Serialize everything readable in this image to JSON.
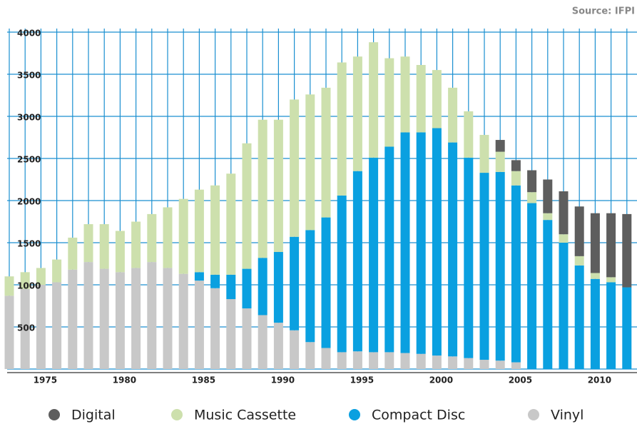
{
  "chart_data": {
    "type": "stacked_bar",
    "source": "Source: IFPI",
    "categories": [
      null,
      null,
      "1975",
      null,
      null,
      null,
      null,
      "1980",
      null,
      null,
      null,
      null,
      "1985",
      null,
      null,
      null,
      null,
      "1990",
      null,
      null,
      null,
      null,
      "1995",
      null,
      null,
      null,
      null,
      "2000",
      null,
      null,
      null,
      null,
      "2005",
      null,
      null,
      null,
      null,
      "2010",
      null,
      null
    ],
    "series": [
      {
        "name": "Digital",
        "color": "#5e5e5e",
        "values": [
          0,
          0,
          0,
          0,
          0,
          0,
          0,
          0,
          0,
          0,
          0,
          0,
          0,
          0,
          0,
          0,
          0,
          0,
          0,
          0,
          0,
          0,
          0,
          0,
          0,
          0,
          0,
          0,
          0,
          0,
          0,
          140,
          130,
          260,
          400,
          510,
          590,
          710,
          760,
          870
        ]
      },
      {
        "name": "Music Cassette",
        "color": "#cde0ad",
        "values": [
          230,
          200,
          200,
          270,
          380,
          450,
          530,
          490,
          550,
          570,
          720,
          890,
          980,
          1060,
          1200,
          1490,
          1640,
          1570,
          1630,
          1610,
          1540,
          1580,
          1360,
          1370,
          1050,
          900,
          800,
          690,
          650,
          550,
          450,
          240,
          170,
          130,
          80,
          100,
          110,
          70,
          60,
          0
        ]
      },
      {
        "name": "Compact Disc",
        "color": "#0aa0e0",
        "values": [
          0,
          0,
          0,
          0,
          0,
          0,
          0,
          0,
          0,
          0,
          0,
          0,
          100,
          160,
          290,
          470,
          680,
          840,
          1110,
          1330,
          1550,
          1860,
          2140,
          2310,
          2440,
          2620,
          2630,
          2700,
          2540,
          2380,
          2220,
          2240,
          2100,
          1970,
          1770,
          1500,
          1230,
          1070,
          1030,
          970
        ]
      },
      {
        "name": "Vinyl",
        "color": "#c8c8c8",
        "values": [
          870,
          950,
          1000,
          1030,
          1180,
          1270,
          1190,
          1150,
          1200,
          1270,
          1200,
          1130,
          1050,
          960,
          830,
          720,
          640,
          550,
          460,
          320,
          250,
          200,
          210,
          200,
          200,
          190,
          180,
          160,
          150,
          130,
          110,
          100,
          80,
          0,
          0,
          0,
          0,
          0,
          0,
          0
        ]
      }
    ],
    "ylim": [
      0,
      4000
    ],
    "yticks": [
      500,
      1000,
      1500,
      2000,
      2500,
      3000,
      3500,
      4000
    ],
    "grid": true,
    "grid_color": "#1a8fd0"
  }
}
